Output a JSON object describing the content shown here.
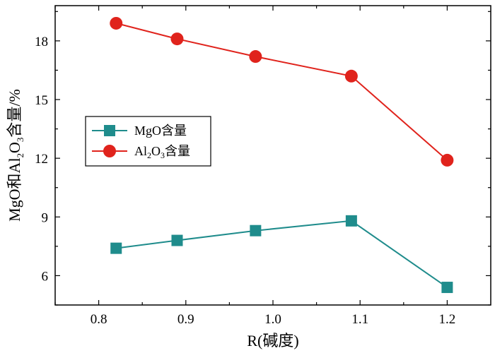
{
  "chart_data": {
    "type": "line",
    "title": "",
    "xlabel": "R(碱度)",
    "ylabel": "MgO和Al₂O₃含量/%",
    "ylabel_parts": {
      "a": "MgO和Al",
      "sub1": "2",
      "b": "O",
      "sub2": "3",
      "c": "含量/%"
    },
    "xlim": [
      0.75,
      1.25
    ],
    "ylim": [
      4.5,
      19.8
    ],
    "xticks": [
      0.8,
      0.9,
      1.0,
      1.1,
      1.2
    ],
    "xtick_labels": [
      "0.8",
      "0.9",
      "1.0",
      "1.1",
      "1.2"
    ],
    "yticks": [
      6,
      9,
      12,
      15,
      18
    ],
    "ytick_labels": [
      "6",
      "9",
      "12",
      "15",
      "18"
    ],
    "grid": false,
    "legend_position": "middle-left",
    "series": [
      {
        "name": "MgO含量",
        "legend_parts": {
          "a": "MgO含量"
        },
        "color": "#1f8c8c",
        "marker": "square",
        "x": [
          0.82,
          0.89,
          0.98,
          1.09,
          1.2
        ],
        "values": [
          7.4,
          7.8,
          8.3,
          8.8,
          5.4
        ]
      },
      {
        "name": "Al₂O₃含量",
        "legend_parts": {
          "a": "Al",
          "sub1": "2",
          "b": "O",
          "sub2": "3",
          "c": "含量"
        },
        "color": "#e0231c",
        "marker": "circle",
        "x": [
          0.82,
          0.89,
          0.98,
          1.09,
          1.2
        ],
        "values": [
          18.9,
          18.1,
          17.2,
          16.2,
          11.9
        ]
      }
    ]
  }
}
